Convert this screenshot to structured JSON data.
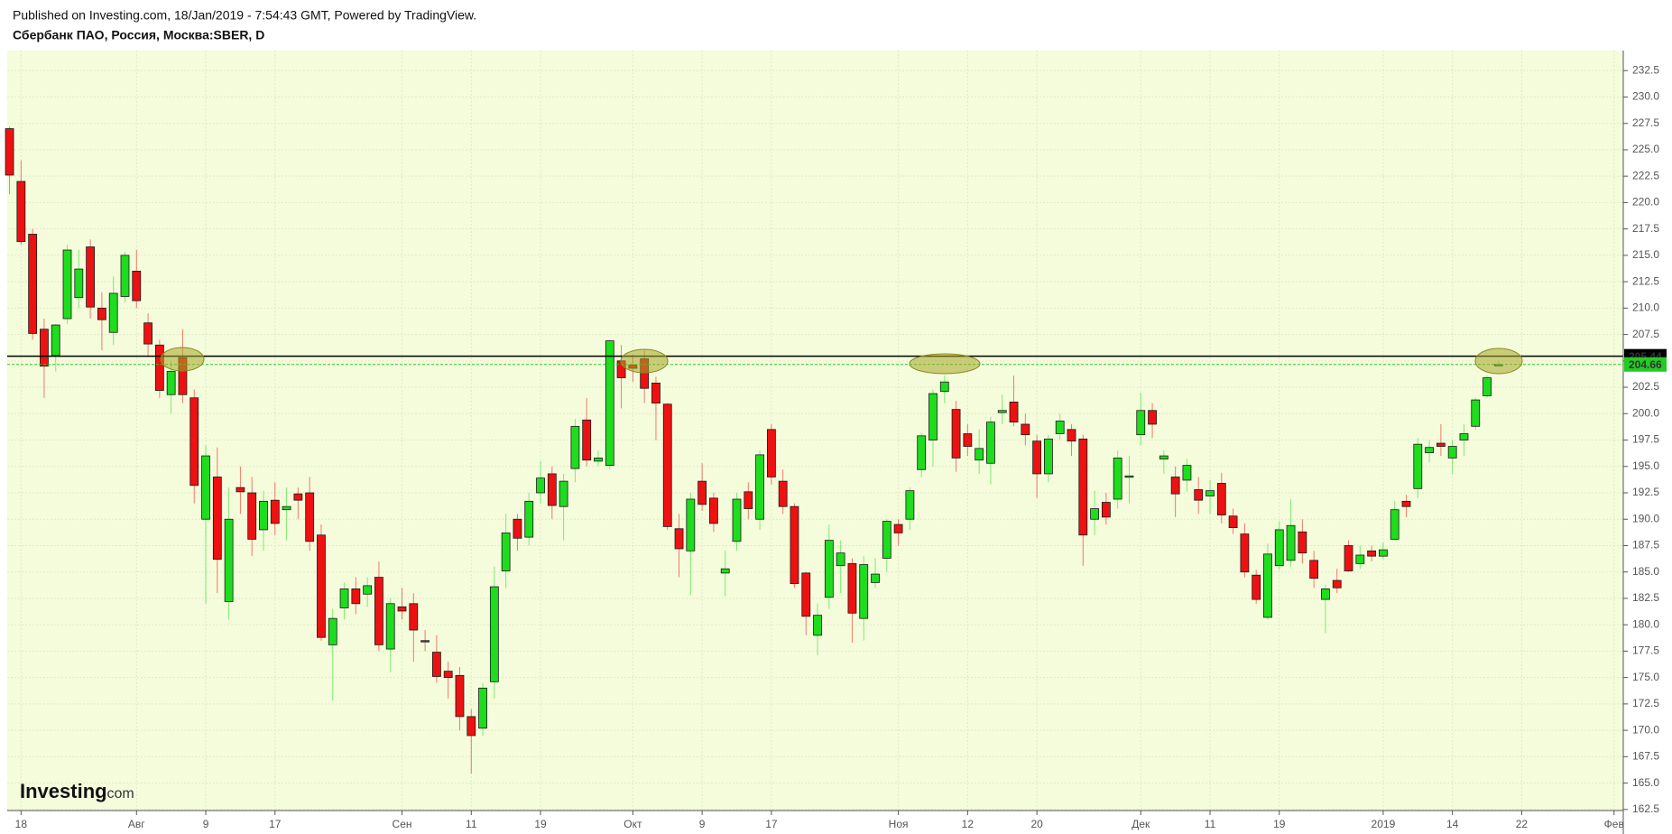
{
  "header": {
    "published": "Published on Investing.com, 18/Jan/2019 - 7:54:43 GMT, Powered by TradingView.",
    "symbol": "Сбербанк ПАО, Россия, Москва:SBER, D"
  },
  "logo": {
    "name": "Investing",
    "suffix": ".com"
  },
  "chart_data": {
    "type": "candlestick",
    "x": [
      0,
      1,
      2,
      3,
      4,
      5,
      6,
      7,
      8,
      9,
      10,
      11,
      12,
      13,
      14,
      15,
      16,
      17,
      18,
      19,
      20,
      21,
      22,
      23,
      24,
      25,
      26,
      27,
      28,
      29,
      30,
      31,
      32,
      33,
      34,
      35,
      36,
      37,
      38,
      39,
      40,
      41,
      42,
      43,
      44,
      45,
      46,
      47,
      48,
      49,
      50,
      51,
      52,
      53,
      54,
      55,
      56,
      57,
      58,
      59,
      60,
      61,
      62,
      63,
      64,
      65,
      66,
      67,
      68,
      69,
      70,
      71,
      72,
      73,
      74,
      75,
      76,
      77,
      78,
      79,
      80,
      81,
      82,
      83,
      84,
      85,
      86,
      87,
      88,
      89,
      90,
      91,
      92,
      93,
      94,
      95,
      96,
      97,
      98,
      99,
      100,
      101,
      102,
      103,
      104,
      105,
      106,
      107,
      108,
      109,
      110,
      111,
      112,
      113,
      114,
      115,
      116,
      117,
      118,
      119,
      120,
      121,
      122,
      123,
      124,
      125,
      126,
      127,
      128,
      129
    ],
    "open": [
      227,
      222,
      217,
      208,
      205.5,
      209,
      211,
      215.8,
      210,
      207.7,
      211.1,
      213.5,
      208.6,
      206.5,
      201.8,
      205.3,
      201.5,
      190,
      194,
      182.2,
      193,
      192.5,
      189,
      191.8,
      190.9,
      192.4,
      192.5,
      188.5,
      178.1,
      181.6,
      183.4,
      182.9,
      184.5,
      177.7,
      181.7,
      182,
      178.5,
      177.4,
      175.6,
      175.2,
      171.3,
      170.2,
      174.6,
      185.1,
      190,
      188.3,
      192.5,
      194.3,
      191.2,
      194.8,
      199.4,
      195.5,
      195.1,
      205,
      204.6,
      205.2,
      202.9,
      200.9,
      189.1,
      187,
      193.6,
      192,
      184.9,
      187.9,
      192.6,
      190,
      198.5,
      193.6,
      191.2,
      184.9,
      179,
      182.6,
      185.6,
      185.8,
      180.6,
      184,
      186.3,
      189.5,
      190,
      194.7,
      197.5,
      202.1,
      200.4,
      198.1,
      195.6,
      195.3,
      200.1,
      201.1,
      199,
      197.4,
      194.3,
      198.1,
      198.5,
      197.6,
      190,
      191.6,
      191.9,
      194,
      198,
      200.3,
      195.7,
      194,
      193.7,
      192.8,
      192.2,
      193.4,
      190.3,
      188.6,
      184.7,
      180.7,
      185.6,
      186.1,
      188.8,
      186.1,
      182.4,
      184.2,
      187.5,
      185.8,
      187,
      186.5,
      188.1,
      191.7,
      192.9,
      196.3,
      197.2,
      195.8,
      197.5,
      198.8,
      201.7,
      204.6
    ],
    "high": [
      227.2,
      224,
      217.5,
      209,
      208.5,
      216,
      215.5,
      216.5,
      211.5,
      213,
      215.3,
      215.5,
      209.5,
      207,
      205,
      208,
      202.3,
      197,
      196.8,
      193,
      195,
      194,
      192.7,
      193.5,
      193,
      193,
      194,
      189.5,
      181.5,
      184,
      184.5,
      184.5,
      186,
      182.5,
      183.5,
      183,
      179.5,
      179,
      176.5,
      176,
      172,
      174.5,
      185.5,
      190.5,
      190.5,
      192.5,
      195.5,
      195,
      194.3,
      199.5,
      201.5,
      196.5,
      207,
      206.5,
      205.6,
      206,
      203.5,
      201,
      190.5,
      192.5,
      195.3,
      192.5,
      187,
      192.5,
      193.5,
      196.5,
      199,
      194.7,
      191.5,
      185,
      182,
      189.5,
      188,
      186.3,
      186.5,
      186.3,
      190,
      190,
      193,
      198.2,
      202.3,
      203.6,
      201.2,
      199,
      198.5,
      199.7,
      201.8,
      203.6,
      200,
      198,
      198,
      200,
      199,
      198,
      192.7,
      192.5,
      196.5,
      196,
      202,
      201,
      196.5,
      195,
      195.7,
      194,
      193.7,
      194.4,
      191,
      189.6,
      185.2,
      187.7,
      189.8,
      191.9,
      190,
      187,
      183.8,
      185.3,
      188,
      187.5,
      187.5,
      187.8,
      191.7,
      192.3,
      197.7,
      197.5,
      199,
      197.5,
      199,
      201.5,
      203.6,
      205
    ],
    "low": [
      220.8,
      216,
      207,
      201.5,
      204,
      208.5,
      210,
      209,
      206,
      206.5,
      210.5,
      210,
      205.5,
      201.5,
      200,
      201,
      191.5,
      182,
      183,
      180.5,
      190.5,
      186.5,
      187,
      188.5,
      188,
      190,
      187,
      178.5,
      172.8,
      180.5,
      181,
      181.7,
      177.5,
      175.5,
      180.5,
      176.5,
      177.5,
      174.5,
      173,
      170,
      165.9,
      169.5,
      173,
      183.5,
      187,
      187.5,
      191.5,
      190,
      188,
      193.5,
      195,
      195,
      194.7,
      200.5,
      203,
      201,
      197.5,
      189,
      184.5,
      182.8,
      190.8,
      188.8,
      182.7,
      187,
      190,
      189,
      193.3,
      190.5,
      183.5,
      179,
      177.1,
      181.5,
      183,
      178.3,
      178.5,
      183.5,
      185,
      187.5,
      189,
      194,
      195,
      201,
      194.5,
      196,
      194.3,
      193.3,
      199,
      198.8,
      197,
      192,
      193.5,
      197.5,
      196,
      185.6,
      188.5,
      189.5,
      191,
      191.5,
      197,
      197.7,
      194.3,
      190.2,
      192.6,
      190.5,
      190.5,
      189.6,
      188.6,
      184.5,
      182,
      180.5,
      185.2,
      185.5,
      185.8,
      183.5,
      179.2,
      183,
      185,
      185.3,
      186,
      186.2,
      188,
      190.2,
      192,
      195.4,
      196,
      194.3,
      196,
      198.5,
      201.5,
      204.5
    ],
    "close": [
      222.6,
      216.3,
      207.6,
      204.5,
      208.4,
      215.5,
      213.7,
      210.1,
      208.9,
      211.4,
      215,
      210.7,
      206.6,
      202.2,
      204,
      201.8,
      193.2,
      196,
      186.2,
      190,
      192.6,
      188.1,
      191.7,
      189.6,
      191.2,
      191.8,
      187.9,
      178.8,
      180.6,
      183.4,
      182,
      183.7,
      178.1,
      182,
      181.3,
      179.5,
      178.4,
      175.1,
      175,
      171.3,
      169.5,
      174,
      183.6,
      188.7,
      188.2,
      191.7,
      193.9,
      191.3,
      193.6,
      198.8,
      195.6,
      195.8,
      206.9,
      203.4,
      204.3,
      202.4,
      201,
      189.3,
      187.2,
      191.9,
      191.4,
      189.6,
      185.3,
      191.9,
      191,
      196.1,
      194,
      191.2,
      183.9,
      180.8,
      180.9,
      188,
      186.8,
      181.1,
      185.7,
      184.8,
      189.8,
      188.7,
      192.7,
      197.9,
      201.9,
      203,
      195.8,
      196.9,
      196.7,
      199.2,
      200.3,
      199.2,
      198,
      194.3,
      197.6,
      199.3,
      197.4,
      188.5,
      191,
      190.2,
      195.8,
      194.1,
      200.3,
      199,
      196,
      192.4,
      195.1,
      191.8,
      192.7,
      190.4,
      189.2,
      185,
      182.4,
      186.7,
      189,
      189.4,
      186.8,
      184.4,
      183.4,
      183.5,
      185.1,
      186.6,
      186.5,
      187.1,
      190.9,
      191.2,
      197.1,
      196.8,
      196.9,
      196.9,
      198.1,
      201.3,
      203.4,
      204.66
    ],
    "up_color": "#1edc1e",
    "down_color": "#ee1111",
    "xlim": [
      -0.2,
      139.8
    ],
    "xticks": [
      {
        "value": 1,
        "label": "18"
      },
      {
        "value": 11,
        "label": "Авг"
      },
      {
        "value": 17,
        "label": "9"
      },
      {
        "value": 23,
        "label": "17"
      },
      {
        "value": 34,
        "label": "Сен"
      },
      {
        "value": 40,
        "label": "11"
      },
      {
        "value": 46,
        "label": "19"
      },
      {
        "value": 54,
        "label": "Окт"
      },
      {
        "value": 60,
        "label": "9"
      },
      {
        "value": 66,
        "label": "17"
      },
      {
        "value": 77,
        "label": "Ноя"
      },
      {
        "value": 83,
        "label": "12"
      },
      {
        "value": 89,
        "label": "20"
      },
      {
        "value": 98,
        "label": "Дек"
      },
      {
        "value": 104,
        "label": "11"
      },
      {
        "value": 110,
        "label": "19"
      },
      {
        "value": 119,
        "label": "2019"
      },
      {
        "value": 125,
        "label": "14"
      },
      {
        "value": 131,
        "label": "22"
      },
      {
        "value": 139,
        "label": "Фев"
      }
    ],
    "ylim": [
      162.4,
      234.4
    ],
    "yticks": [
      162.5,
      {
        "value": 165,
        "label": "165.0"
      },
      167.5,
      {
        "value": 170,
        "label": "170.0"
      },
      172.5,
      {
        "value": 175,
        "label": "175.0"
      },
      177.5,
      {
        "value": 180,
        "label": "180.0"
      },
      182.5,
      {
        "value": 185,
        "label": "185.0"
      },
      187.5,
      {
        "value": 190,
        "label": "190.0"
      },
      192.5,
      {
        "value": 195,
        "label": "195.0"
      },
      197.5,
      {
        "value": 200,
        "label": "200.0"
      },
      202.5,
      {
        "value": 205,
        "label": "205.0"
      },
      207.5,
      {
        "value": 210,
        "label": "210.0"
      },
      212.5,
      {
        "value": 215,
        "label": "215.0"
      },
      217.5,
      {
        "value": 220,
        "label": "220.0"
      },
      222.5,
      {
        "value": 225,
        "label": "225.0"
      },
      227.5,
      {
        "value": 230,
        "label": "230.0"
      },
      232.5
    ],
    "price_lines": [
      {
        "value": 205.44,
        "color": "#000000",
        "text_color": "#ffffff"
      },
      {
        "value": 204.66,
        "color": "#22cc22",
        "text_color": "#ffffff"
      }
    ],
    "grid": true
  }
}
